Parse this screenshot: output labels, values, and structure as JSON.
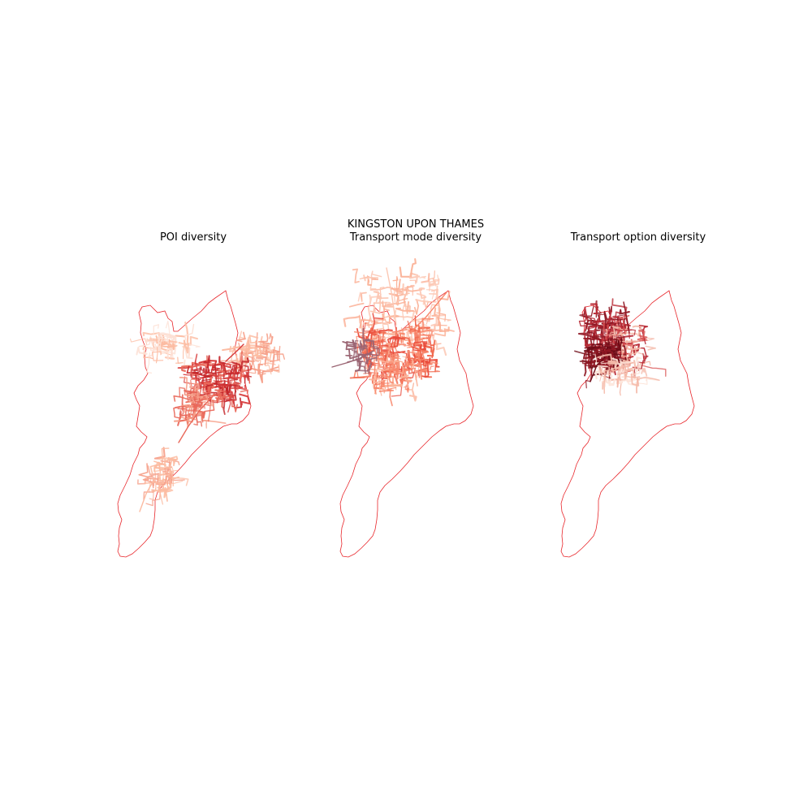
{
  "figure": {
    "suptitle": "KINGSTON UPON THAMES"
  },
  "panels": [
    {
      "title": "POI diversity",
      "palette": [
        "#fde0d4",
        "#fcbba1",
        "#f6a08a",
        "#e9685a",
        "#d73a3a",
        "#c4262b"
      ]
    },
    {
      "title": "Transport mode diversity",
      "palette": [
        "#fcc7b3",
        "#fbb197",
        "#f8876c",
        "#f1694f",
        "#e94b3c",
        "#9a6472"
      ]
    },
    {
      "title": "Transport option diversity",
      "palette": [
        "#fde3d8",
        "#f4b7a6",
        "#d95252",
        "#b82a35",
        "#8f1723",
        "#6e0c17"
      ]
    }
  ],
  "colors": {
    "boundary": "#e8262b"
  }
}
